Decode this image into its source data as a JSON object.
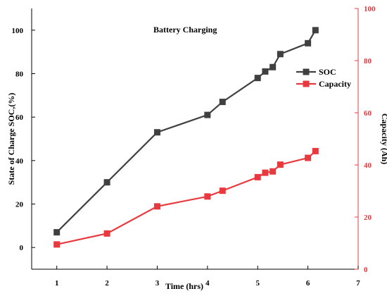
{
  "chart_data": {
    "type": "line",
    "title": "Battery Charging",
    "xlabel": "Time (hrs)",
    "ylabel": "State of Charge SOC,(%)",
    "y2label": "Capacity (Ah)",
    "xlim": [
      0.5,
      7
    ],
    "ylim": [
      -10,
      110
    ],
    "y2lim": [
      0,
      100
    ],
    "x_ticks": [
      1,
      2,
      3,
      4,
      5,
      6,
      7
    ],
    "y_ticks": [
      0,
      20,
      40,
      60,
      80,
      100
    ],
    "y2_ticks": [
      0,
      20,
      40,
      60,
      80,
      100
    ],
    "legend_position": "right",
    "series": [
      {
        "name": "SOC",
        "axis": "left",
        "color": "#404040",
        "x": [
          1,
          2,
          3,
          4,
          4.3,
          5,
          5.15,
          5.3,
          5.45,
          6,
          6.15
        ],
        "values": [
          7,
          30,
          53,
          61,
          67,
          78,
          81,
          83,
          89,
          94,
          100
        ]
      },
      {
        "name": "Capacity",
        "axis": "right",
        "color": "#e8393f",
        "x": [
          1,
          2,
          3,
          4,
          4.3,
          5,
          5.15,
          5.3,
          5.45,
          6,
          6.15
        ],
        "values": [
          9.5,
          13.7,
          24.1,
          27.9,
          30.1,
          35.3,
          37.0,
          37.5,
          40.1,
          42.7,
          45.3
        ]
      }
    ]
  }
}
